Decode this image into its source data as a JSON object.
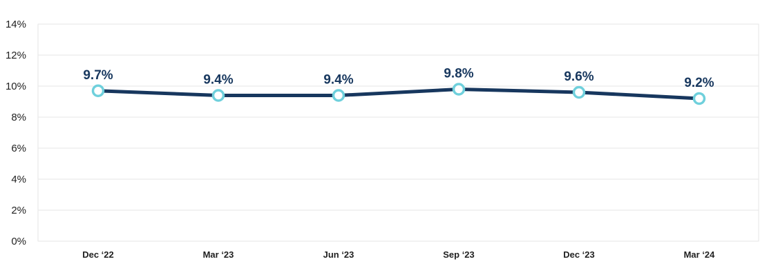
{
  "chart_data": {
    "type": "line",
    "categories": [
      "Dec ‘22",
      "Mar ‘23",
      "Jun ‘23",
      "Sep ‘23",
      "Dec ‘23",
      "Mar ‘24"
    ],
    "values": [
      9.7,
      9.4,
      9.4,
      9.8,
      9.6,
      9.2
    ],
    "data_labels": [
      "9.7%",
      "9.4%",
      "9.4%",
      "9.8%",
      "9.6%",
      "9.2%"
    ],
    "y_ticks": [
      "0%",
      "2%",
      "4%",
      "6%",
      "8%",
      "10%",
      "12%",
      "14%"
    ],
    "y_tick_values": [
      0,
      2,
      4,
      6,
      8,
      10,
      12,
      14
    ],
    "ylim": [
      0,
      14
    ],
    "title": "",
    "xlabel": "",
    "ylabel": "",
    "grid": true,
    "legend": "none",
    "colors": {
      "line": "#17375e",
      "marker_stroke": "#6fd0dc",
      "marker_fill": "#ffffff",
      "label": "#17375e"
    }
  }
}
